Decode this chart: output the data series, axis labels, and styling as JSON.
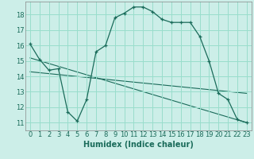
{
  "title": "",
  "xlabel": "Humidex (Indice chaleur)",
  "background_color": "#cceee8",
  "grid_color": "#99ddcc",
  "line_color": "#1a6b5a",
  "xlim": [
    -0.5,
    23.5
  ],
  "ylim": [
    10.5,
    18.85
  ],
  "xticks": [
    0,
    1,
    2,
    3,
    4,
    5,
    6,
    7,
    8,
    9,
    10,
    11,
    12,
    13,
    14,
    15,
    16,
    17,
    18,
    19,
    20,
    21,
    22,
    23
  ],
  "yticks": [
    11,
    12,
    13,
    14,
    15,
    16,
    17,
    18
  ],
  "main_x": [
    0,
    1,
    2,
    3,
    4,
    5,
    6,
    7,
    8,
    9,
    10,
    11,
    12,
    13,
    14,
    15,
    16,
    17,
    18,
    19,
    20,
    21,
    22,
    23
  ],
  "main_y": [
    16.1,
    15.1,
    14.4,
    14.5,
    11.7,
    11.1,
    12.5,
    15.6,
    16.0,
    17.8,
    18.1,
    18.5,
    18.5,
    18.2,
    17.7,
    17.5,
    17.5,
    17.5,
    16.6,
    15.0,
    12.9,
    12.5,
    11.2,
    11.0
  ],
  "line2_x": [
    0,
    23
  ],
  "line2_y": [
    15.2,
    11.0
  ],
  "line3_x": [
    0,
    23
  ],
  "line3_y": [
    14.3,
    12.9
  ],
  "tick_fontsize": 6,
  "xlabel_fontsize": 7
}
